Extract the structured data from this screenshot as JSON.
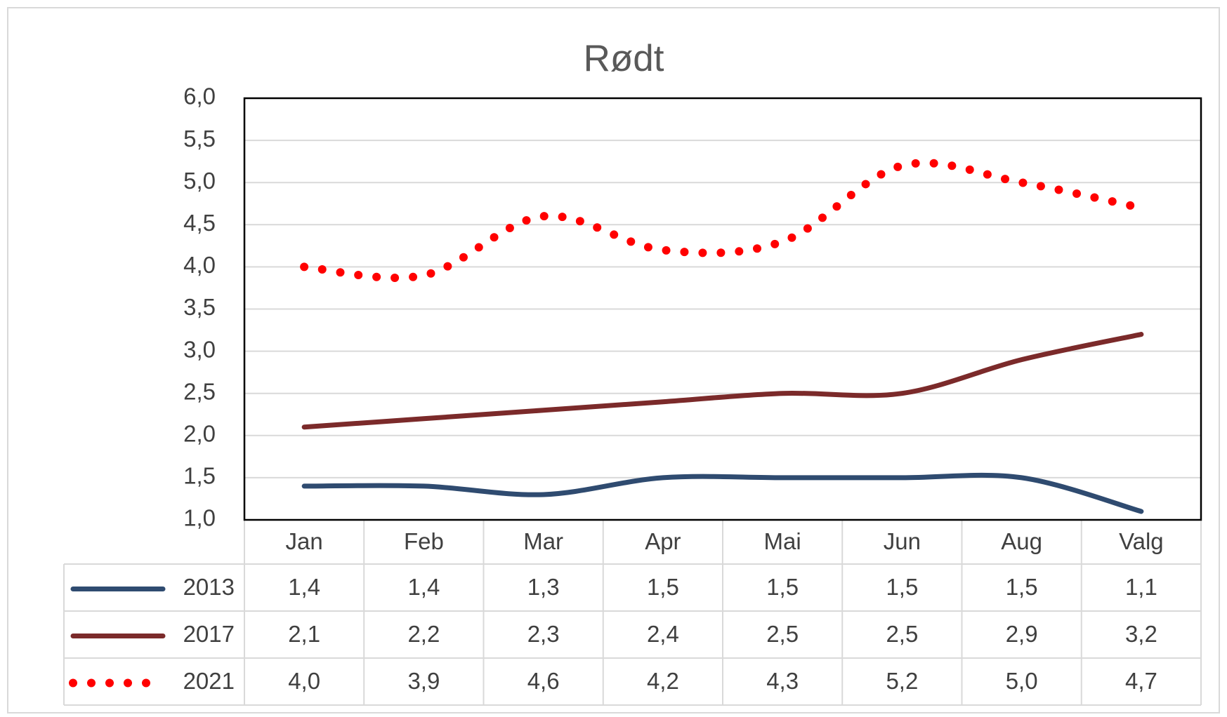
{
  "chart_data": {
    "type": "line",
    "title": "Rødt",
    "categories": [
      "Jan",
      "Feb",
      "Mar",
      "Apr",
      "Mai",
      "Jun",
      "Aug",
      "Valg"
    ],
    "series": [
      {
        "name": "2013",
        "color": "#2f4b70",
        "style": "solid",
        "values": [
          1.4,
          1.4,
          1.3,
          1.5,
          1.5,
          1.5,
          1.5,
          1.1
        ],
        "value_labels": [
          "1,4",
          "1,4",
          "1,3",
          "1,5",
          "1,5",
          "1,5",
          "1,5",
          "1,1"
        ]
      },
      {
        "name": "2017",
        "color": "#7b2a2a",
        "style": "solid",
        "values": [
          2.1,
          2.2,
          2.3,
          2.4,
          2.5,
          2.5,
          2.9,
          3.2
        ],
        "value_labels": [
          "2,1",
          "2,2",
          "2,3",
          "2,4",
          "2,5",
          "2,5",
          "2,9",
          "3,2"
        ]
      },
      {
        "name": "2021",
        "color": "#ff0000",
        "style": "dotted",
        "values": [
          4.0,
          3.9,
          4.6,
          4.2,
          4.3,
          5.2,
          5.0,
          4.7
        ],
        "value_labels": [
          "4,0",
          "3,9",
          "4,6",
          "4,2",
          "4,3",
          "5,2",
          "5,0",
          "4,7"
        ]
      }
    ],
    "ylim": [
      1,
      6
    ],
    "yticks": [
      {
        "value": 1,
        "label": "1,0"
      },
      {
        "value": 1.5,
        "label": "1,5"
      },
      {
        "value": 2,
        "label": "2,0"
      },
      {
        "value": 2.5,
        "label": "2,5"
      },
      {
        "value": 3,
        "label": "3,0"
      },
      {
        "value": 3.5,
        "label": "3,5"
      },
      {
        "value": 4,
        "label": "4,0"
      },
      {
        "value": 4.5,
        "label": "4,5"
      },
      {
        "value": 5,
        "label": "5,0"
      },
      {
        "value": 5.5,
        "label": "5,5"
      },
      {
        "value": 6,
        "label": "6,0"
      }
    ],
    "grid": true,
    "smooth": true
  }
}
